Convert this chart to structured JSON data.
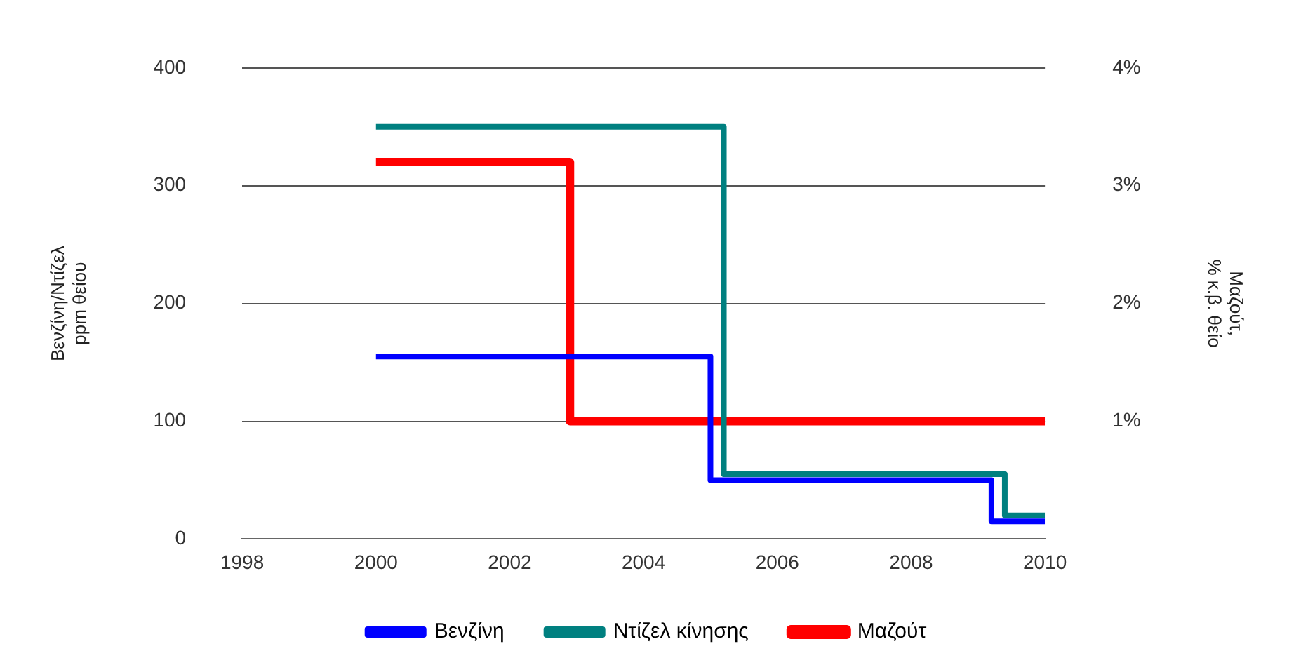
{
  "chart_data": {
    "type": "step",
    "xlabel": null,
    "ylabel": "Βενζίνη/Ντίζελ\nppm θείου",
    "y2label": "Μαζούτ,\n% κ.β. θείο",
    "series": [
      {
        "name": "Βενζίνη",
        "color": "#0000ff",
        "x": [
          2000,
          2005,
          2009.2,
          2010
        ],
        "values": [
          155,
          50,
          15,
          15
        ]
      },
      {
        "name": "Ντίζελ κίνησης",
        "color": "#008080",
        "x": [
          2000,
          2005.2,
          2009.4,
          2010
        ],
        "values": [
          350,
          55,
          20,
          20
        ]
      },
      {
        "name": "Μαζούτ",
        "color": "#ff0000",
        "axis": "y2",
        "x": [
          2000,
          2002.9,
          2010
        ],
        "values": [
          3.2,
          1,
          1
        ]
      }
    ],
    "xlim": [
      1998,
      2010
    ],
    "xticks": [
      1998,
      2000,
      2002,
      2004,
      2006,
      2008,
      2010
    ],
    "ylim": [
      0,
      400
    ],
    "yticks": [
      0,
      100,
      200,
      300,
      400
    ],
    "y2lim": [
      0,
      4
    ],
    "y2ticks": [
      {
        "value": 1,
        "label": "1%"
      },
      {
        "value": 2,
        "label": "2%"
      },
      {
        "value": 3,
        "label": "3%"
      },
      {
        "value": 4,
        "label": "4%"
      }
    ],
    "grid": "y",
    "legend": "bottom"
  }
}
